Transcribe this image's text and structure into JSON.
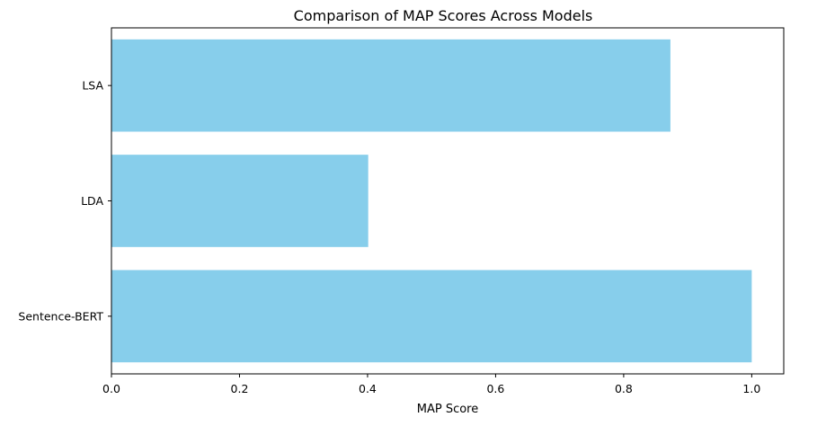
{
  "chart_data": {
    "type": "bar",
    "orientation": "horizontal",
    "title": "Comparison of MAP Scores Across Models",
    "xlabel": "MAP Score",
    "ylabel": "",
    "categories": [
      "LSA",
      "LDA",
      "Sentence-BERT"
    ],
    "values": [
      0.873,
      0.401,
      1.0
    ],
    "xlim": [
      0.0,
      1.05
    ],
    "xticks": [
      0.0,
      0.2,
      0.4,
      0.6,
      0.8,
      1.0
    ],
    "xtick_labels": [
      "0.0",
      "0.2",
      "0.4",
      "0.6",
      "0.8",
      "1.0"
    ],
    "bar_color": "#87ceeb",
    "grid": false,
    "legend": false
  }
}
